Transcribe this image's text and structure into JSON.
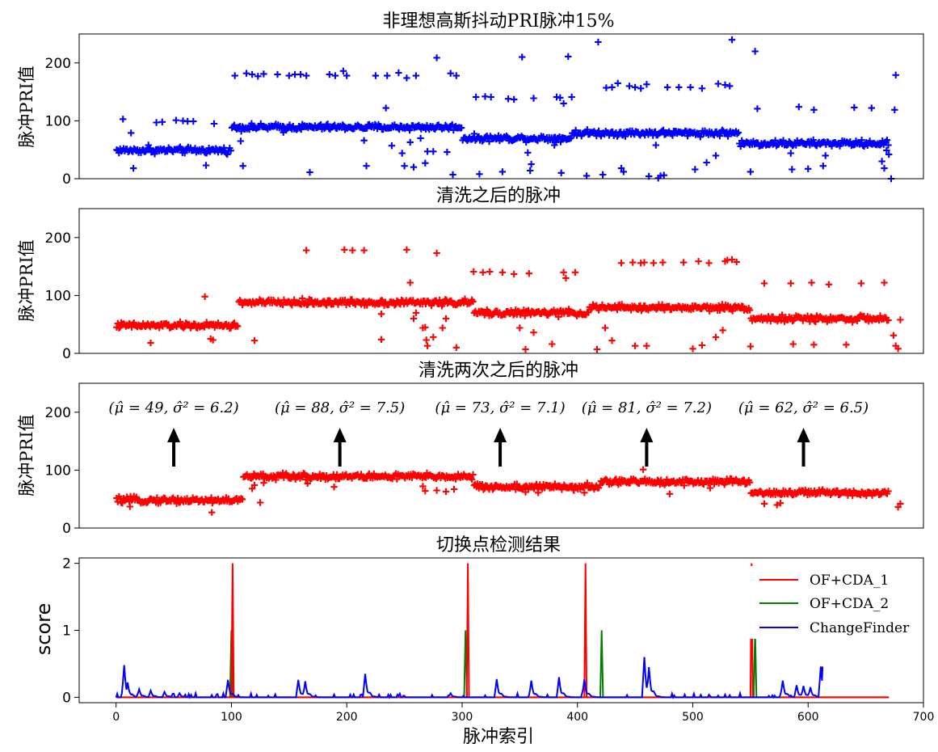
{
  "chart_data": [
    {
      "type": "scatter",
      "title": "非理想高斯抖动PRI脉冲15%",
      "ylabel": "脉冲PRI值",
      "xlim": [
        -32,
        700
      ],
      "ylim": [
        0,
        250
      ],
      "yticks": [
        0,
        100,
        200
      ],
      "marker": "+",
      "color": "#0000ff",
      "segments": [
        {
          "start": 0,
          "end": 100,
          "level": 49
        },
        {
          "start": 100,
          "end": 300,
          "level": 89
        },
        {
          "start": 300,
          "end": 395,
          "level": 70
        },
        {
          "start": 395,
          "end": 540,
          "level": 79
        },
        {
          "start": 540,
          "end": 670,
          "level": 61
        }
      ],
      "outliers": [
        [
          6,
          103
        ],
        [
          13,
          79
        ],
        [
          15,
          18
        ],
        [
          28,
          58
        ],
        [
          35,
          97
        ],
        [
          40,
          98
        ],
        [
          52,
          101
        ],
        [
          58,
          100
        ],
        [
          62,
          99
        ],
        [
          67,
          99
        ],
        [
          78,
          23
        ],
        [
          85,
          95
        ],
        [
          103,
          178
        ],
        [
          108,
          65
        ],
        [
          110,
          22
        ],
        [
          113,
          182
        ],
        [
          118,
          180
        ],
        [
          123,
          177
        ],
        [
          128,
          181
        ],
        [
          140,
          180
        ],
        [
          145,
          80
        ],
        [
          150,
          178
        ],
        [
          155,
          180
        ],
        [
          160,
          180
        ],
        [
          165,
          178
        ],
        [
          168,
          11
        ],
        [
          185,
          180
        ],
        [
          190,
          178
        ],
        [
          197,
          186
        ],
        [
          200,
          178
        ],
        [
          215,
          66
        ],
        [
          217,
          22
        ],
        [
          225,
          178
        ],
        [
          234,
          122
        ],
        [
          235,
          178
        ],
        [
          239,
          57
        ],
        [
          245,
          183
        ],
        [
          248,
          44
        ],
        [
          250,
          22
        ],
        [
          252,
          174
        ],
        [
          255,
          63
        ],
        [
          258,
          20
        ],
        [
          260,
          178
        ],
        [
          264,
          70
        ],
        [
          268,
          27
        ],
        [
          270,
          47
        ],
        [
          275,
          47
        ],
        [
          278,
          209
        ],
        [
          287,
          46
        ],
        [
          290,
          182
        ],
        [
          292,
          7
        ],
        [
          295,
          178
        ],
        [
          312,
          141
        ],
        [
          315,
          8
        ],
        [
          320,
          142
        ],
        [
          325,
          141
        ],
        [
          335,
          12
        ],
        [
          340,
          138
        ],
        [
          345,
          137
        ],
        [
          352,
          210
        ],
        [
          357,
          45
        ],
        [
          359,
          14
        ],
        [
          360,
          25
        ],
        [
          362,
          139
        ],
        [
          380,
          58
        ],
        [
          382,
          141
        ],
        [
          385,
          140
        ],
        [
          386,
          10
        ],
        [
          388,
          130
        ],
        [
          392,
          211
        ],
        [
          395,
          141
        ],
        [
          408,
          5
        ],
        [
          418,
          236
        ],
        [
          422,
          7
        ],
        [
          425,
          157
        ],
        [
          430,
          158
        ],
        [
          435,
          165
        ],
        [
          438,
          18
        ],
        [
          440,
          12
        ],
        [
          445,
          160
        ],
        [
          450,
          158
        ],
        [
          455,
          156
        ],
        [
          460,
          163
        ],
        [
          462,
          4
        ],
        [
          468,
          58
        ],
        [
          470,
          1
        ],
        [
          472,
          5
        ],
        [
          475,
          6
        ],
        [
          478,
          158
        ],
        [
          488,
          158
        ],
        [
          498,
          158
        ],
        [
          502,
          16
        ],
        [
          508,
          156
        ],
        [
          512,
          28
        ],
        [
          520,
          40
        ],
        [
          522,
          164
        ],
        [
          528,
          162
        ],
        [
          532,
          160
        ],
        [
          534,
          240
        ],
        [
          550,
          12
        ],
        [
          554,
          220
        ],
        [
          556,
          121
        ],
        [
          560,
          58
        ],
        [
          585,
          44
        ],
        [
          586,
          16
        ],
        [
          592,
          124
        ],
        [
          600,
          17
        ],
        [
          605,
          119
        ],
        [
          613,
          22
        ],
        [
          615,
          40
        ],
        [
          640,
          123
        ],
        [
          655,
          122
        ],
        [
          664,
          30
        ],
        [
          666,
          18
        ],
        [
          668,
          49
        ],
        [
          670,
          42
        ],
        [
          672,
          0
        ],
        [
          675,
          119
        ],
        [
          676,
          179
        ]
      ]
    },
    {
      "type": "scatter",
      "title": "清洗之后的脉冲",
      "ylabel": "脉冲PRI值",
      "xlim": [
        -32,
        700
      ],
      "ylim": [
        0,
        250
      ],
      "yticks": [
        0,
        100,
        200
      ],
      "marker": "+",
      "color": "#ff0000",
      "segments": [
        {
          "start": 0,
          "end": 106,
          "level": 48
        },
        {
          "start": 106,
          "end": 310,
          "level": 88
        },
        {
          "start": 310,
          "end": 410,
          "level": 70
        },
        {
          "start": 410,
          "end": 550,
          "level": 79
        },
        {
          "start": 550,
          "end": 670,
          "level": 60
        }
      ],
      "outliers": [
        [
          30,
          18
        ],
        [
          77,
          98
        ],
        [
          82,
          25
        ],
        [
          84,
          23
        ],
        [
          120,
          22
        ],
        [
          165,
          178
        ],
        [
          198,
          179
        ],
        [
          205,
          178
        ],
        [
          215,
          178
        ],
        [
          230,
          68
        ],
        [
          230,
          24
        ],
        [
          252,
          179
        ],
        [
          255,
          122
        ],
        [
          258,
          60
        ],
        [
          260,
          70
        ],
        [
          266,
          44
        ],
        [
          268,
          45
        ],
        [
          269,
          23
        ],
        [
          270,
          13
        ],
        [
          275,
          28
        ],
        [
          278,
          173
        ],
        [
          283,
          44
        ],
        [
          286,
          60
        ],
        [
          295,
          10
        ],
        [
          310,
          141
        ],
        [
          318,
          140
        ],
        [
          324,
          141
        ],
        [
          335,
          140
        ],
        [
          345,
          137
        ],
        [
          350,
          44
        ],
        [
          355,
          7
        ],
        [
          358,
          138
        ],
        [
          362,
          36
        ],
        [
          378,
          16
        ],
        [
          388,
          140
        ],
        [
          390,
          130
        ],
        [
          393,
          69
        ],
        [
          398,
          140
        ],
        [
          417,
          7
        ],
        [
          424,
          44
        ],
        [
          430,
          22
        ],
        [
          438,
          156
        ],
        [
          448,
          157
        ],
        [
          450,
          13
        ],
        [
          455,
          156
        ],
        [
          458,
          157
        ],
        [
          460,
          13
        ],
        [
          466,
          156
        ],
        [
          474,
          157
        ],
        [
          492,
          157
        ],
        [
          500,
          8
        ],
        [
          505,
          159
        ],
        [
          508,
          14
        ],
        [
          514,
          156
        ],
        [
          520,
          28
        ],
        [
          526,
          40
        ],
        [
          528,
          159
        ],
        [
          530,
          161
        ],
        [
          534,
          162
        ],
        [
          538,
          158
        ],
        [
          550,
          12
        ],
        [
          562,
          121
        ],
        [
          585,
          121
        ],
        [
          587,
          16
        ],
        [
          603,
          122
        ],
        [
          605,
          15
        ],
        [
          618,
          119
        ],
        [
          633,
          15
        ],
        [
          646,
          121
        ],
        [
          666,
          122
        ],
        [
          674,
          31
        ],
        [
          676,
          13
        ],
        [
          678,
          8
        ],
        [
          680,
          58
        ]
      ]
    },
    {
      "type": "scatter",
      "title": "清洗两次之后的脉冲",
      "ylabel": "脉冲PRI值",
      "xlim": [
        -32,
        700
      ],
      "ylim": [
        0,
        250
      ],
      "yticks": [
        0,
        100,
        200
      ],
      "marker": "+",
      "color": "#ff0000",
      "segments": [
        {
          "start": 0,
          "end": 110,
          "level": 48
        },
        {
          "start": 110,
          "end": 310,
          "level": 89
        },
        {
          "start": 310,
          "end": 420,
          "level": 71
        },
        {
          "start": 420,
          "end": 550,
          "level": 80
        },
        {
          "start": 550,
          "end": 670,
          "level": 61
        }
      ],
      "outliers": [
        [
          12,
          37
        ],
        [
          83,
          27
        ],
        [
          118,
          68
        ],
        [
          120,
          74
        ],
        [
          125,
          44
        ],
        [
          128,
          78
        ],
        [
          166,
          77
        ],
        [
          189,
          71
        ],
        [
          266,
          72
        ],
        [
          268,
          64
        ],
        [
          278,
          65
        ],
        [
          286,
          63
        ],
        [
          293,
          67
        ],
        [
          355,
          62
        ],
        [
          366,
          61
        ],
        [
          376,
          69
        ],
        [
          397,
          65
        ],
        [
          406,
          61
        ],
        [
          457,
          101
        ],
        [
          480,
          59
        ],
        [
          515,
          69
        ],
        [
          562,
          42
        ],
        [
          573,
          40
        ],
        [
          576,
          43
        ],
        [
          678,
          36
        ],
        [
          680,
          42
        ]
      ],
      "annotations": [
        {
          "x": 50,
          "label": "(μ̂ = 49, σ̂² = 6.2)"
        },
        {
          "x": 194,
          "label": "(μ̂ = 88, σ̂² = 7.5)"
        },
        {
          "x": 333,
          "label": "(μ̂ = 73, σ̂² = 7.1)"
        },
        {
          "x": 460,
          "label": "(μ̂ = 81, σ̂² = 7.2)"
        },
        {
          "x": 596,
          "label": "(μ̂ = 62, σ̂² = 6.5)"
        }
      ]
    },
    {
      "type": "line",
      "title": "切换点检测结果",
      "ylabel": "score",
      "xlabel": "脉冲索引",
      "xlim": [
        -32,
        700
      ],
      "ylim": [
        -0.08,
        2.08
      ],
      "yticks": [
        0,
        1,
        2
      ],
      "xticks": [
        0,
        100,
        200,
        300,
        400,
        500,
        600,
        700
      ],
      "legend_position": "top-right",
      "series": [
        {
          "name": "OF+CDA_1",
          "color": "#ff0000",
          "spikes": [
            {
              "x": 101,
              "y": 2
            },
            {
              "x": 305,
              "y": 2
            },
            {
              "x": 407,
              "y": 2
            },
            {
              "x": 551,
              "y": 2
            }
          ]
        },
        {
          "name": "OF+CDA_2",
          "color": "#008000",
          "spikes": [
            {
              "x": 100,
              "y": 1
            },
            {
              "x": 303,
              "y": 1
            },
            {
              "x": 421,
              "y": 1
            },
            {
              "x": 554,
              "y": 1
            }
          ]
        },
        {
          "name": "ChangeFinder",
          "color": "#0000ff",
          "x_end": 612,
          "peaks": [
            [
              7,
              0.48
            ],
            [
              10,
              0.22
            ],
            [
              20,
              0.12
            ],
            [
              30,
              0.1
            ],
            [
              42,
              0.08
            ],
            [
              55,
              0.06
            ],
            [
              97,
              0.26
            ],
            [
              158,
              0.26
            ],
            [
              164,
              0.24
            ],
            [
              216,
              0.35
            ],
            [
              290,
              0.06
            ],
            [
              330,
              0.27
            ],
            [
              360,
              0.25
            ],
            [
              384,
              0.3
            ],
            [
              406,
              0.27
            ],
            [
              458,
              0.6
            ],
            [
              462,
              0.45
            ],
            [
              578,
              0.25
            ],
            [
              590,
              0.18
            ],
            [
              596,
              0.17
            ],
            [
              602,
              0.15
            ],
            [
              611,
              0.46
            ]
          ]
        }
      ]
    }
  ]
}
